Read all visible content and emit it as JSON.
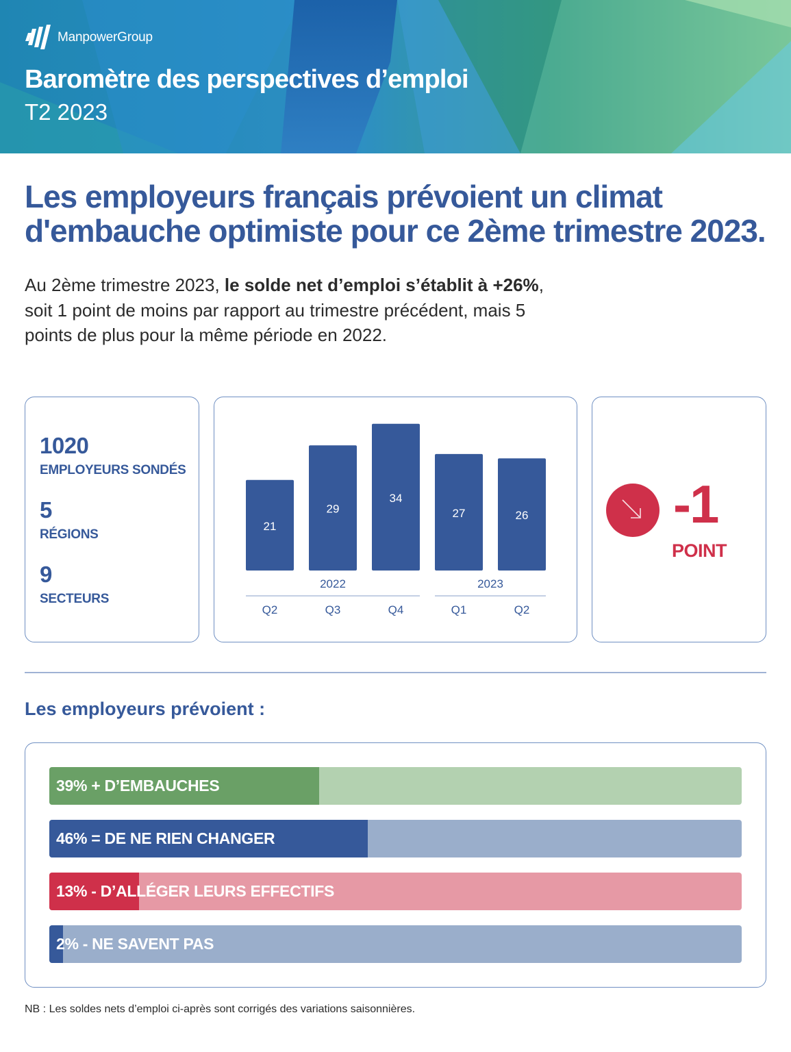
{
  "brand": {
    "name": "ManpowerGroup",
    "logo_icon": "manpower-logo-icon"
  },
  "header": {
    "title": "Baromètre des perspectives d’emploi",
    "subtitle": "T2 2023"
  },
  "headline": "Les employeurs français prévoient un climat d'embauche optimiste pour ce 2ème trimestre 2023.",
  "intro": {
    "part1": "Au 2ème trimestre 2023, ",
    "bold": "le solde net d’emploi s’établit à +26%",
    "part2": ", soit 1 point de moins par rapport au trimestre précédent, mais 5 points de plus pour la même période en 2022."
  },
  "stats": [
    {
      "value": "1020",
      "label": "EMPLOYEURS SONDÉS"
    },
    {
      "value": "5",
      "label": "RÉGIONS"
    },
    {
      "value": "9",
      "label": "SECTEURS"
    }
  ],
  "chart_data": {
    "type": "bar",
    "categories": [
      "Q2",
      "Q3",
      "Q4",
      "Q1",
      "Q2"
    ],
    "groups": [
      {
        "label": "2022",
        "categories": [
          "Q2",
          "Q3",
          "Q4"
        ]
      },
      {
        "label": "2023",
        "categories": [
          "Q1",
          "Q2"
        ]
      }
    ],
    "values": [
      21,
      29,
      34,
      27,
      26
    ],
    "title": "",
    "xlabel": "",
    "ylabel": "",
    "data_labels": true,
    "grid": false,
    "color": "#36599a"
  },
  "delta": {
    "value": "-1",
    "unit": "POINT",
    "icon": "arrow-down-right-icon",
    "color": "#cf304a"
  },
  "section_title": "Les employeurs prévoient :",
  "intentions": [
    {
      "label": "39% + D’EMBAUCHES",
      "percent": 39,
      "color": "#6aa066",
      "track": "#b3d1b0"
    },
    {
      "label": "46% = DE NE RIEN CHANGER",
      "percent": 46,
      "color": "#36599a",
      "track": "#9aaecb"
    },
    {
      "label": "13% - D’ALLÉGER LEURS EFFECTIFS",
      "percent": 13,
      "color": "#cf304a",
      "track": "#e699a5"
    },
    {
      "label": "2% - NE SAVENT PAS",
      "percent": 2,
      "color": "#36599a",
      "track": "#9aaecb"
    }
  ],
  "footnote": "NB : Les soldes nets d’emploi ci-après sont corrigés des variations saisonnières."
}
